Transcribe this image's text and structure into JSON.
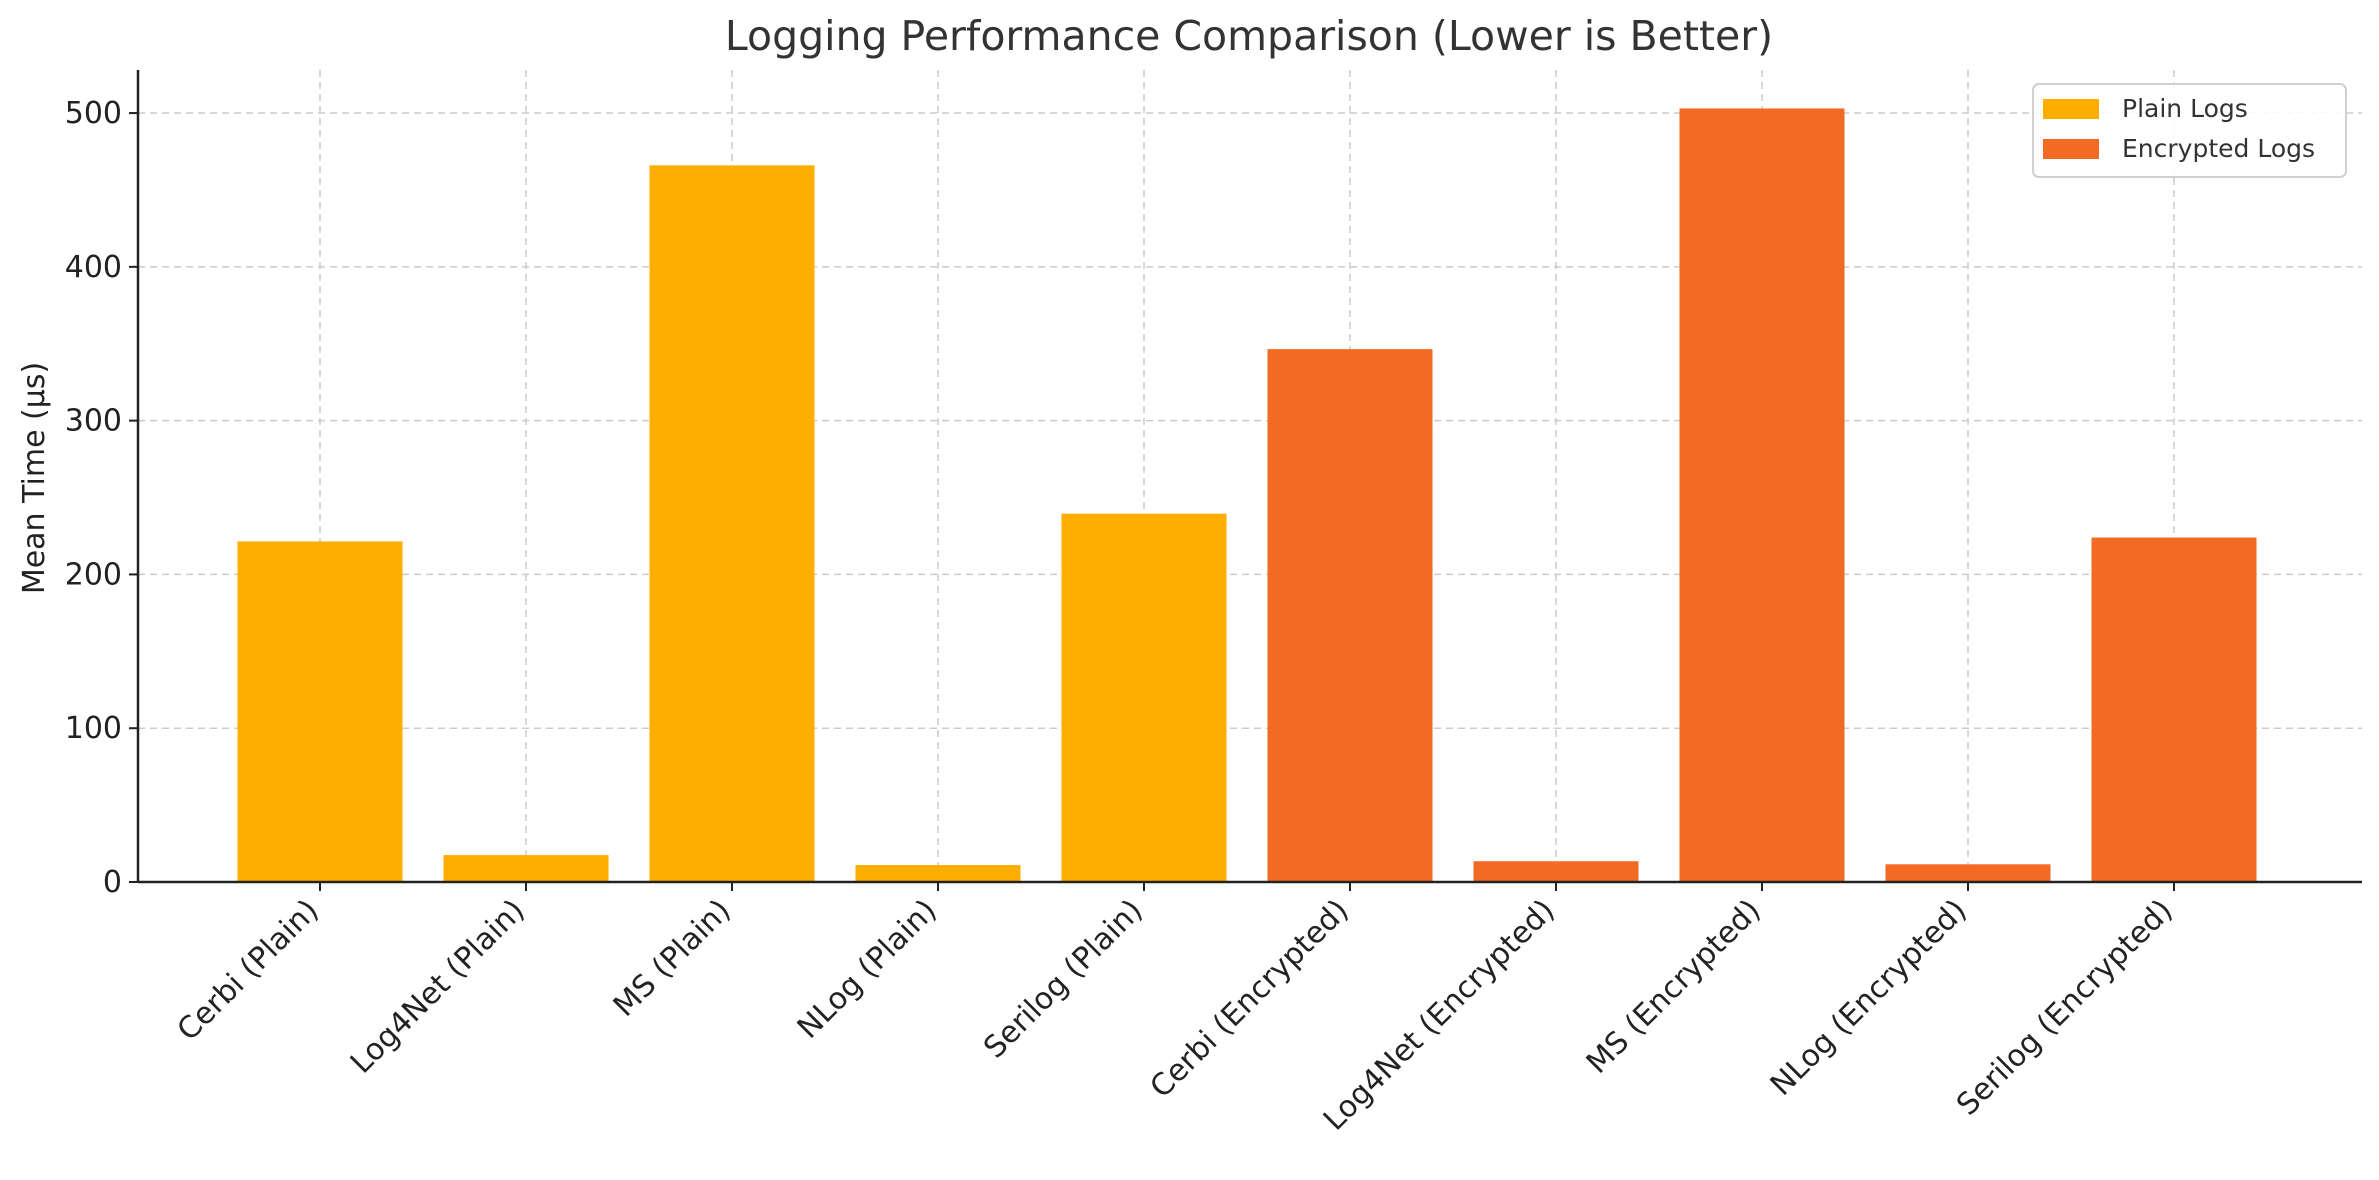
{
  "chart_data": {
    "type": "bar",
    "title": "Logging Performance Comparison (Lower is Better)",
    "xlabel": "",
    "ylabel": "Mean Time (µs)",
    "ylim": [
      0,
      528
    ],
    "yticks": [
      0,
      100,
      200,
      300,
      400,
      500
    ],
    "grid": true,
    "legend_position": "top-right",
    "categories": [
      "Cerbi (Plain)",
      "Log4Net (Plain)",
      "MS (Plain)",
      "NLog (Plain)",
      "Serilog (Plain)",
      "Cerbi (Encrypted)",
      "Log4Net (Encrypted)",
      "MS (Encrypted)",
      "NLog (Encrypted)",
      "Serilog (Encrypted)"
    ],
    "series": [
      {
        "name": "Plain Logs",
        "color": "#FFAE00",
        "values": [
          221.5,
          17.5,
          466,
          11,
          239.5,
          null,
          null,
          null,
          null,
          null
        ]
      },
      {
        "name": "Encrypted Logs",
        "color": "#F26A24",
        "values": [
          null,
          null,
          null,
          null,
          null,
          346.5,
          13.5,
          503,
          11.5,
          224
        ]
      }
    ]
  }
}
